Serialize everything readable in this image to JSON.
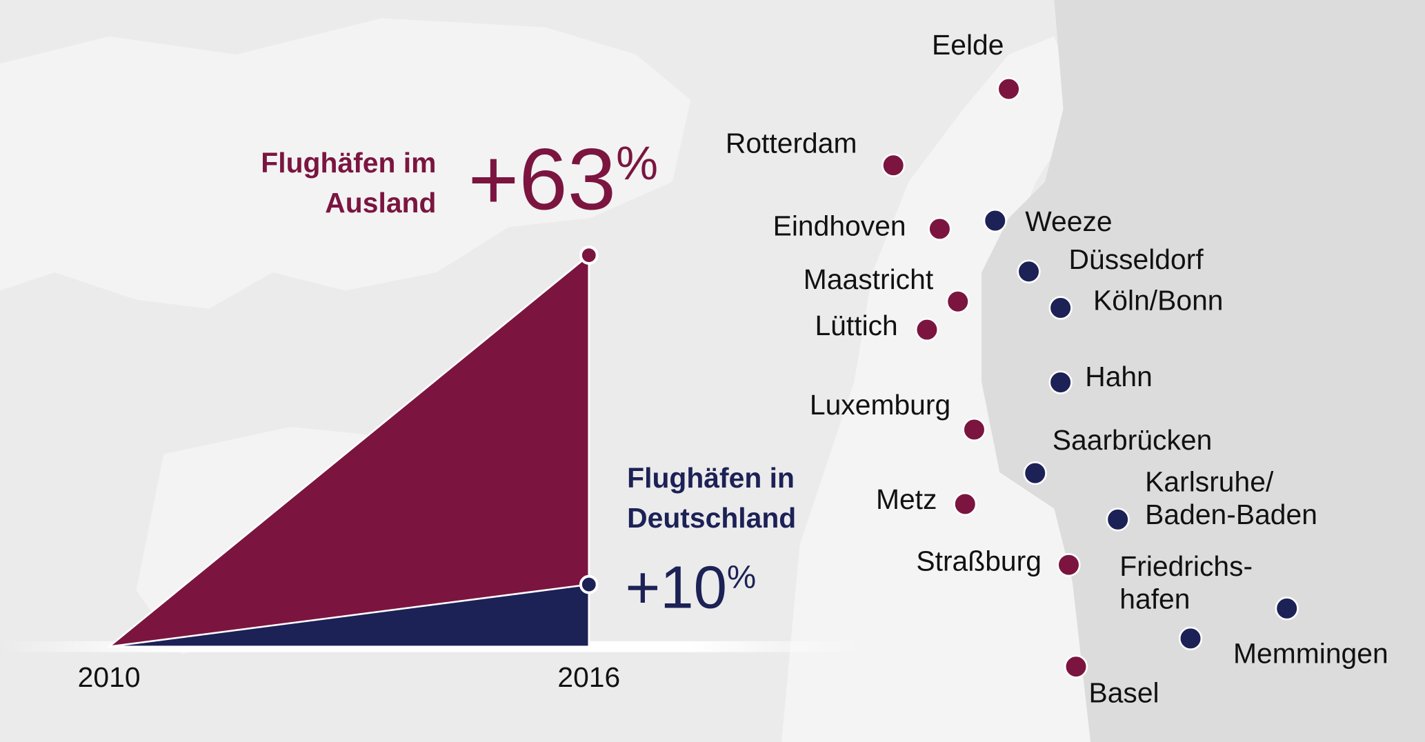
{
  "chart_data": {
    "type": "area",
    "x": [
      "2010",
      "2016"
    ],
    "series": [
      {
        "name": "Flughäfen im Ausland",
        "color": "#7b1540",
        "values": [
          0,
          63
        ],
        "value_labels": [
          null,
          "+63%"
        ],
        "airports": [
          [
            "Eelde"
          ],
          [
            "Rotterdam"
          ],
          [
            "Eindhoven"
          ],
          [
            "Maastricht"
          ],
          [
            "Lüttich"
          ],
          [
            "Luxemburg"
          ],
          [
            "Metz"
          ],
          [
            "Straßburg"
          ],
          [
            "Basel"
          ]
        ]
      },
      {
        "name": "Flughäfen in Deutschland",
        "color": "#1c2156",
        "values": [
          0,
          10
        ],
        "value_labels": [
          null,
          "+10%"
        ],
        "airports": [
          [
            "Weeze"
          ],
          [
            "Düsseldorf"
          ],
          [
            "Köln/Bonn"
          ],
          [
            "Hahn"
          ],
          [
            "Saarbrücken"
          ],
          [
            "Karlsruhe/",
            "Baden-Baden"
          ],
          [
            "Friedrichs-",
            "hafen"
          ],
          [
            "Memmingen"
          ]
        ]
      }
    ]
  }
}
